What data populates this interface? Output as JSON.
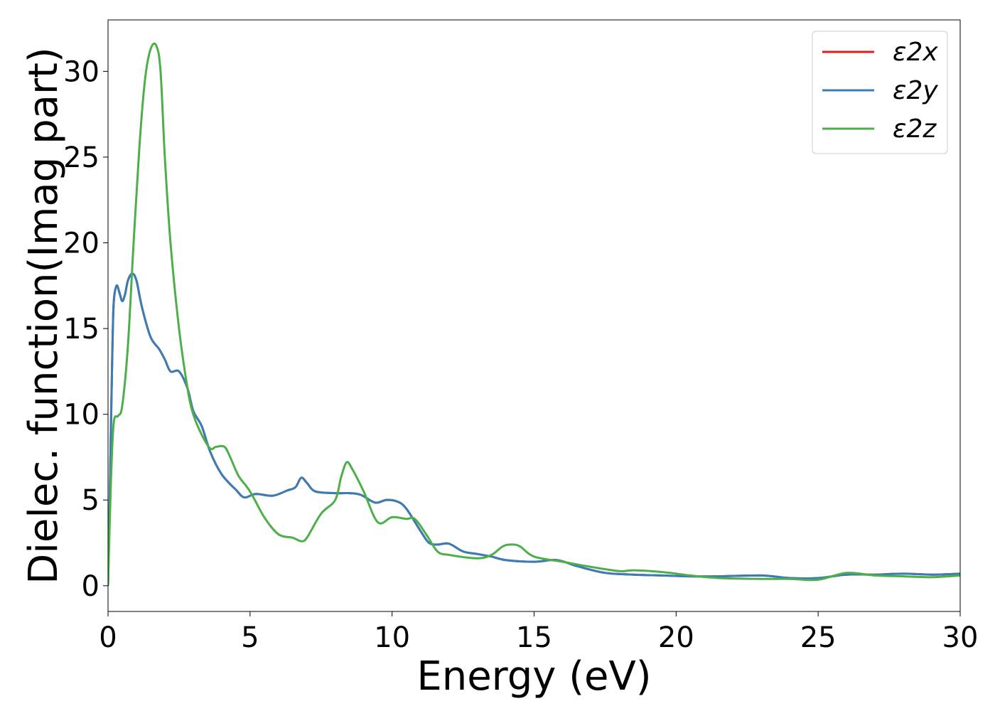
{
  "chart_data": {
    "type": "line",
    "xlabel": "Energy (eV)",
    "ylabel": "Dielec. function(Imag part)",
    "xlim": [
      0,
      30
    ],
    "ylim": [
      -1.5,
      33
    ],
    "xticks": [
      0,
      5,
      10,
      15,
      20,
      25,
      30
    ],
    "yticks": [
      0,
      5,
      10,
      15,
      20,
      25,
      30
    ],
    "grid": false,
    "legend": "top-right",
    "series": [
      {
        "name": "ε2x",
        "color": "#e41a1c",
        "points": [
          [
            0,
            0
          ],
          [
            0.05,
            4
          ],
          [
            0.1,
            9
          ],
          [
            0.15,
            13.5
          ],
          [
            0.2,
            16.5
          ],
          [
            0.3,
            17.5
          ],
          [
            0.4,
            17.1
          ],
          [
            0.5,
            16.6
          ],
          [
            0.6,
            17
          ],
          [
            0.7,
            17.8
          ],
          [
            0.85,
            18.2
          ],
          [
            1.0,
            17.8
          ],
          [
            1.2,
            16.2
          ],
          [
            1.5,
            14.5
          ],
          [
            1.8,
            13.8
          ],
          [
            2.0,
            13.2
          ],
          [
            2.2,
            12.5
          ],
          [
            2.5,
            12.5
          ],
          [
            2.8,
            11.5
          ],
          [
            3.0,
            10.2
          ],
          [
            3.3,
            9.3
          ],
          [
            3.6,
            7.8
          ],
          [
            4.0,
            6.5
          ],
          [
            4.5,
            5.6
          ],
          [
            4.8,
            5.15
          ],
          [
            5.2,
            5.35
          ],
          [
            5.8,
            5.25
          ],
          [
            6.3,
            5.55
          ],
          [
            6.6,
            5.75
          ],
          [
            6.8,
            6.3
          ],
          [
            7.0,
            6.0
          ],
          [
            7.3,
            5.5
          ],
          [
            8.0,
            5.4
          ],
          [
            8.5,
            5.4
          ],
          [
            8.9,
            5.3
          ],
          [
            9.4,
            4.85
          ],
          [
            9.8,
            5.0
          ],
          [
            10.2,
            4.9
          ],
          [
            10.5,
            4.5
          ],
          [
            11.0,
            3.2
          ],
          [
            11.3,
            2.5
          ],
          [
            11.6,
            2.4
          ],
          [
            12.0,
            2.45
          ],
          [
            12.5,
            2.0
          ],
          [
            13.0,
            1.85
          ],
          [
            13.5,
            1.7
          ],
          [
            14.0,
            1.5
          ],
          [
            15.0,
            1.4
          ],
          [
            15.8,
            1.5
          ],
          [
            16.5,
            1.15
          ],
          [
            17.5,
            0.75
          ],
          [
            18.5,
            0.65
          ],
          [
            19.5,
            0.6
          ],
          [
            20.5,
            0.55
          ],
          [
            21.5,
            0.55
          ],
          [
            23.0,
            0.6
          ],
          [
            24.0,
            0.45
          ],
          [
            25.0,
            0.45
          ],
          [
            26.0,
            0.65
          ],
          [
            27.0,
            0.65
          ],
          [
            28.0,
            0.7
          ],
          [
            29.0,
            0.65
          ],
          [
            30.0,
            0.7
          ]
        ]
      },
      {
        "name": "ε2y",
        "color": "#377eb8",
        "points": [
          [
            0,
            0
          ],
          [
            0.05,
            4
          ],
          [
            0.1,
            9
          ],
          [
            0.15,
            13.5
          ],
          [
            0.2,
            16.5
          ],
          [
            0.3,
            17.5
          ],
          [
            0.4,
            17.1
          ],
          [
            0.5,
            16.6
          ],
          [
            0.6,
            17
          ],
          [
            0.7,
            17.8
          ],
          [
            0.85,
            18.2
          ],
          [
            1.0,
            17.8
          ],
          [
            1.2,
            16.2
          ],
          [
            1.5,
            14.5
          ],
          [
            1.8,
            13.8
          ],
          [
            2.0,
            13.2
          ],
          [
            2.2,
            12.5
          ],
          [
            2.5,
            12.5
          ],
          [
            2.8,
            11.5
          ],
          [
            3.0,
            10.2
          ],
          [
            3.3,
            9.3
          ],
          [
            3.6,
            7.8
          ],
          [
            4.0,
            6.5
          ],
          [
            4.5,
            5.6
          ],
          [
            4.8,
            5.15
          ],
          [
            5.2,
            5.35
          ],
          [
            5.8,
            5.25
          ],
          [
            6.3,
            5.55
          ],
          [
            6.6,
            5.75
          ],
          [
            6.8,
            6.3
          ],
          [
            7.0,
            6.0
          ],
          [
            7.3,
            5.5
          ],
          [
            8.0,
            5.4
          ],
          [
            8.5,
            5.4
          ],
          [
            8.9,
            5.3
          ],
          [
            9.4,
            4.85
          ],
          [
            9.8,
            5.0
          ],
          [
            10.2,
            4.9
          ],
          [
            10.5,
            4.5
          ],
          [
            11.0,
            3.2
          ],
          [
            11.3,
            2.5
          ],
          [
            11.6,
            2.4
          ],
          [
            12.0,
            2.45
          ],
          [
            12.5,
            2.0
          ],
          [
            13.0,
            1.85
          ],
          [
            13.5,
            1.7
          ],
          [
            14.0,
            1.5
          ],
          [
            15.0,
            1.4
          ],
          [
            15.8,
            1.5
          ],
          [
            16.5,
            1.15
          ],
          [
            17.5,
            0.75
          ],
          [
            18.5,
            0.65
          ],
          [
            19.5,
            0.6
          ],
          [
            20.5,
            0.55
          ],
          [
            21.5,
            0.55
          ],
          [
            23.0,
            0.6
          ],
          [
            24.0,
            0.45
          ],
          [
            25.0,
            0.45
          ],
          [
            26.0,
            0.65
          ],
          [
            27.0,
            0.65
          ],
          [
            28.0,
            0.7
          ],
          [
            29.0,
            0.65
          ],
          [
            30.0,
            0.7
          ]
        ]
      },
      {
        "name": "ε2z",
        "color": "#4daf4a",
        "points": [
          [
            0,
            0
          ],
          [
            0.1,
            6
          ],
          [
            0.2,
            9.5
          ],
          [
            0.35,
            9.9
          ],
          [
            0.5,
            10.5
          ],
          [
            0.7,
            14
          ],
          [
            0.9,
            20
          ],
          [
            1.1,
            25.5
          ],
          [
            1.3,
            29.5
          ],
          [
            1.5,
            31.3
          ],
          [
            1.7,
            31.5
          ],
          [
            1.85,
            30
          ],
          [
            2.0,
            25
          ],
          [
            2.2,
            20
          ],
          [
            2.5,
            15
          ],
          [
            2.8,
            11.5
          ],
          [
            3.0,
            10
          ],
          [
            3.3,
            8.8
          ],
          [
            3.6,
            8.0
          ],
          [
            3.8,
            8.1
          ],
          [
            4.1,
            8.1
          ],
          [
            4.3,
            7.5
          ],
          [
            4.6,
            6.4
          ],
          [
            5.0,
            5.5
          ],
          [
            5.5,
            4.0
          ],
          [
            6.0,
            3.0
          ],
          [
            6.5,
            2.8
          ],
          [
            6.8,
            2.6
          ],
          [
            7.0,
            2.8
          ],
          [
            7.5,
            4.2
          ],
          [
            8.0,
            5.0
          ],
          [
            8.2,
            6.3
          ],
          [
            8.4,
            7.2
          ],
          [
            8.6,
            6.8
          ],
          [
            9.0,
            5.5
          ],
          [
            9.5,
            3.7
          ],
          [
            10.0,
            4.0
          ],
          [
            10.5,
            3.9
          ],
          [
            10.8,
            3.9
          ],
          [
            11.2,
            3.0
          ],
          [
            11.6,
            2.0
          ],
          [
            12.0,
            1.8
          ],
          [
            13.0,
            1.6
          ],
          [
            13.5,
            1.8
          ],
          [
            13.9,
            2.3
          ],
          [
            14.2,
            2.4
          ],
          [
            14.5,
            2.3
          ],
          [
            15.0,
            1.7
          ],
          [
            16.0,
            1.4
          ],
          [
            17.0,
            1.1
          ],
          [
            18.0,
            0.85
          ],
          [
            18.5,
            0.9
          ],
          [
            19.5,
            0.8
          ],
          [
            20.5,
            0.6
          ],
          [
            21.5,
            0.45
          ],
          [
            23.0,
            0.4
          ],
          [
            24.0,
            0.4
          ],
          [
            25.0,
            0.35
          ],
          [
            26.0,
            0.75
          ],
          [
            27.0,
            0.6
          ],
          [
            28.0,
            0.55
          ],
          [
            29.0,
            0.5
          ],
          [
            30.0,
            0.6
          ]
        ]
      }
    ]
  }
}
